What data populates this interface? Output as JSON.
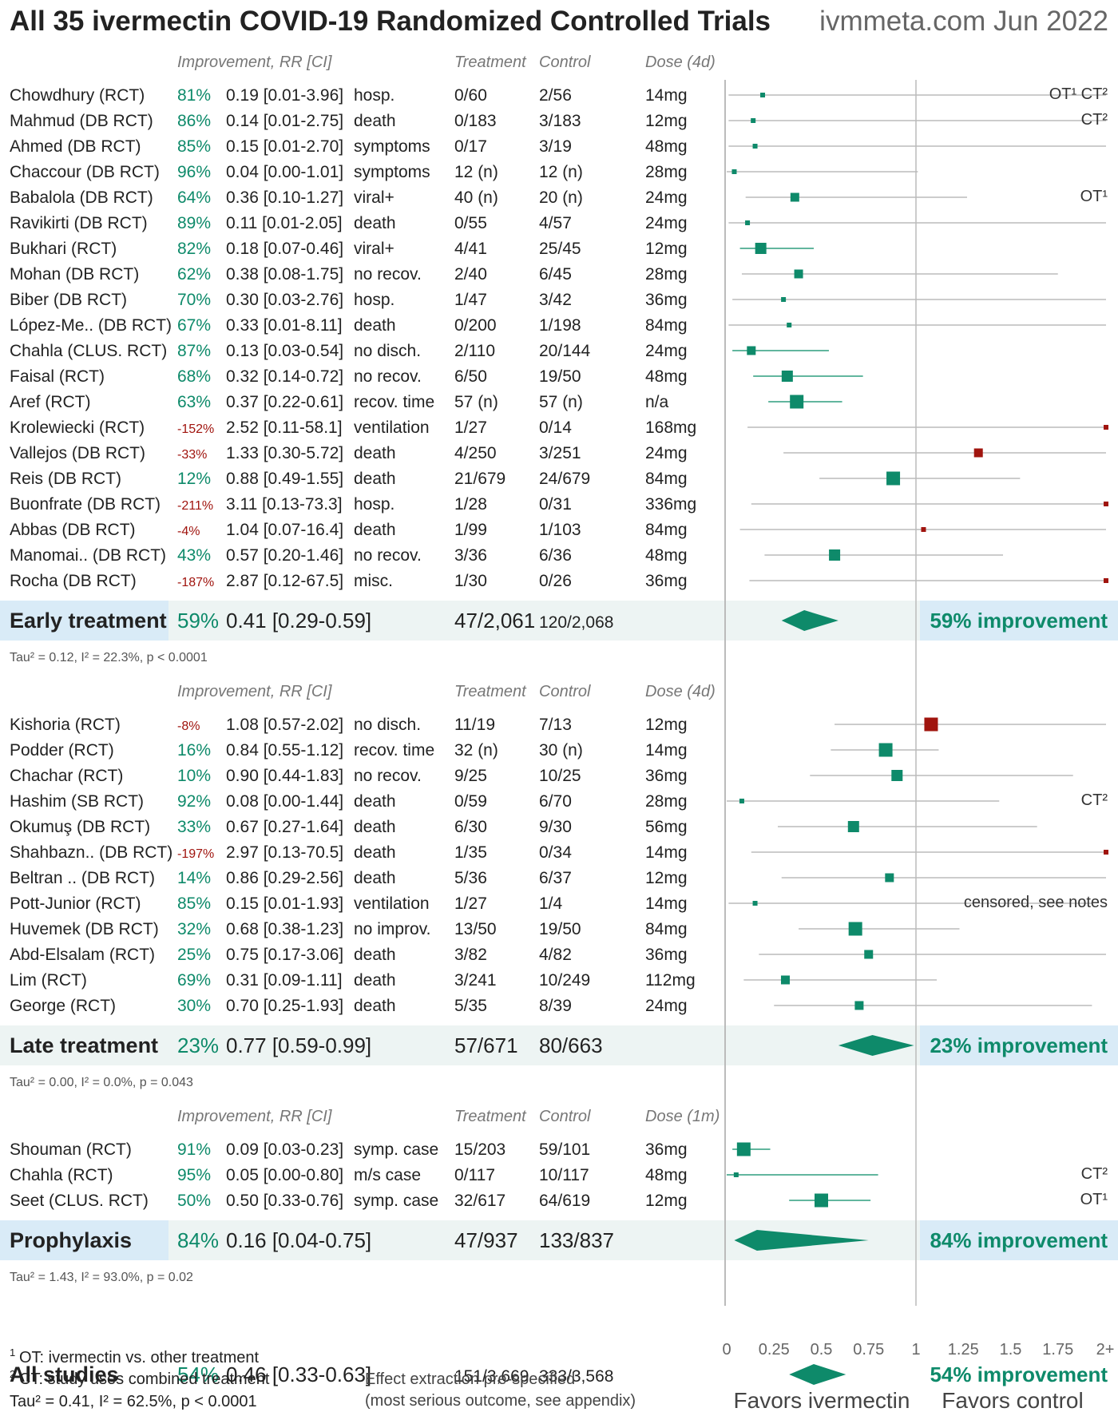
{
  "header": {
    "title": "All 35 ivermectin COVID-19 Randomized Controlled Trials",
    "source": "ivmmeta.com Jun 2022"
  },
  "colors": {
    "benefit": "#0e8a6a",
    "harm": "#a0140e",
    "ci_benefit": "#2e9e7e",
    "ci_neutral": "#bbbbbb",
    "band": "#edf4f3",
    "label_band": "#d9ebf7",
    "text": "#222222",
    "muted": "#777777"
  },
  "axis": {
    "ticks": [
      "0",
      "0.25",
      "0.5",
      "0.75",
      "1",
      "1.25",
      "1.5",
      "1.75",
      "2+"
    ],
    "favors_left": "Favors ivermectin",
    "favors_right": "Favors control"
  },
  "footnotes": {
    "ot": "OT: ivermectin vs. other treatment",
    "ct": "CT: study uses combined treatment",
    "overall_tau": "Tau² = 0.41, I² = 62.5%, p < 0.0001",
    "effect_line1": "Effect extraction pre-specified",
    "effect_line2": "(most serious outcome, see appendix)"
  },
  "chart_data": {
    "type": "forest",
    "xlim": [
      0,
      2
    ],
    "reference_line": 1,
    "groups": [
      {
        "name": "Early treatment",
        "headers": {
          "improvement": "Improvement, RR [CI]",
          "treatment": "Treatment",
          "control": "Control",
          "dose": "Dose (4d)"
        },
        "studies": [
          {
            "name": "Chowdhury (RCT)",
            "improvement": "81%",
            "rr": 0.19,
            "ci_text": "0.19 [0.01-3.96]",
            "lo": 0.01,
            "hi": 3.96,
            "outcome": "hosp.",
            "treatment": "0/60",
            "control": "2/56",
            "dose": "14mg",
            "note": "OT¹ CT²",
            "w": 1
          },
          {
            "name": "Mahmud (DB RCT)",
            "improvement": "86%",
            "rr": 0.14,
            "ci_text": "0.14 [0.01-2.75]",
            "lo": 0.01,
            "hi": 2.75,
            "outcome": "death",
            "treatment": "0/183",
            "control": "3/183",
            "dose": "12mg",
            "note": "CT²",
            "w": 1
          },
          {
            "name": "Ahmed (DB RCT)",
            "improvement": "85%",
            "rr": 0.15,
            "ci_text": "0.15 [0.01-2.70]",
            "lo": 0.01,
            "hi": 2.7,
            "outcome": "symptoms",
            "treatment": "0/17",
            "control": "3/19",
            "dose": "48mg",
            "note": "",
            "w": 1
          },
          {
            "name": "Chaccour (DB RCT)",
            "improvement": "96%",
            "rr": 0.04,
            "ci_text": "0.04 [0.00-1.01]",
            "lo": 0.0,
            "hi": 1.01,
            "outcome": "symptoms",
            "treatment": "12 (n)",
            "control": "12 (n)",
            "dose": "28mg",
            "note": "",
            "w": 1
          },
          {
            "name": "Babalola (DB RCT)",
            "improvement": "64%",
            "rr": 0.36,
            "ci_text": "0.36 [0.10-1.27]",
            "lo": 0.1,
            "hi": 1.27,
            "outcome": "viral+",
            "treatment": "40 (n)",
            "control": "20 (n)",
            "dose": "24mg",
            "note": "OT¹",
            "w": 2
          },
          {
            "name": "Ravikirti (DB RCT)",
            "improvement": "89%",
            "rr": 0.11,
            "ci_text": "0.11 [0.01-2.05]",
            "lo": 0.01,
            "hi": 2.05,
            "outcome": "death",
            "treatment": "0/55",
            "control": "4/57",
            "dose": "24mg",
            "note": "",
            "w": 1
          },
          {
            "name": "Bukhari (RCT)",
            "improvement": "82%",
            "rr": 0.18,
            "ci_text": "0.18 [0.07-0.46]",
            "lo": 0.07,
            "hi": 0.46,
            "outcome": "viral+",
            "treatment": "4/41",
            "control": "25/45",
            "dose": "12mg",
            "note": "",
            "w": 3
          },
          {
            "name": "Mohan (DB RCT)",
            "improvement": "62%",
            "rr": 0.38,
            "ci_text": "0.38 [0.08-1.75]",
            "lo": 0.08,
            "hi": 1.75,
            "outcome": "no recov.",
            "treatment": "2/40",
            "control": "6/45",
            "dose": "28mg",
            "note": "",
            "w": 2
          },
          {
            "name": "Biber (DB RCT)",
            "improvement": "70%",
            "rr": 0.3,
            "ci_text": "0.30 [0.03-2.76]",
            "lo": 0.03,
            "hi": 2.76,
            "outcome": "hosp.",
            "treatment": "1/47",
            "control": "3/42",
            "dose": "36mg",
            "note": "",
            "w": 1
          },
          {
            "name": "López-Me.. (DB RCT)",
            "improvement": "67%",
            "rr": 0.33,
            "ci_text": "0.33 [0.01-8.11]",
            "lo": 0.01,
            "hi": 8.11,
            "outcome": "death",
            "treatment": "0/200",
            "control": "1/198",
            "dose": "84mg",
            "note": "",
            "w": 1
          },
          {
            "name": "Chahla (CLUS. RCT)",
            "improvement": "87%",
            "rr": 0.13,
            "ci_text": "0.13 [0.03-0.54]",
            "lo": 0.03,
            "hi": 0.54,
            "outcome": "no disch.",
            "treatment": "2/110",
            "control": "20/144",
            "dose": "24mg",
            "note": "",
            "w": 2
          },
          {
            "name": "Faisal (RCT)",
            "improvement": "68%",
            "rr": 0.32,
            "ci_text": "0.32 [0.14-0.72]",
            "lo": 0.14,
            "hi": 0.72,
            "outcome": "no recov.",
            "treatment": "6/50",
            "control": "19/50",
            "dose": "48mg",
            "note": "",
            "w": 3
          },
          {
            "name": "Aref (RCT)",
            "improvement": "63%",
            "rr": 0.37,
            "ci_text": "0.37 [0.22-0.61]",
            "lo": 0.22,
            "hi": 0.61,
            "outcome": "recov. time",
            "treatment": "57 (n)",
            "control": "57 (n)",
            "dose": "n/a",
            "note": "",
            "w": 4
          },
          {
            "name": "Krolewiecki (RCT)",
            "improvement": "-152%",
            "rr": 2.52,
            "ci_text": "2.52 [0.11-58.1]",
            "lo": 0.11,
            "hi": 58.1,
            "outcome": "ventilation",
            "treatment": "1/27",
            "control": "0/14",
            "dose": "168mg",
            "note": "",
            "w": 1
          },
          {
            "name": "Vallejos (DB RCT)",
            "improvement": "-33%",
            "rr": 1.33,
            "ci_text": "1.33 [0.30-5.72]",
            "lo": 0.3,
            "hi": 5.72,
            "outcome": "death",
            "treatment": "4/250",
            "control": "3/251",
            "dose": "24mg",
            "note": "",
            "w": 2
          },
          {
            "name": "Reis (DB RCT)",
            "improvement": "12%",
            "rr": 0.88,
            "ci_text": "0.88 [0.49-1.55]",
            "lo": 0.49,
            "hi": 1.55,
            "outcome": "death",
            "treatment": "21/679",
            "control": "24/679",
            "dose": "84mg",
            "note": "",
            "w": 4
          },
          {
            "name": "Buonfrate (DB RCT)",
            "improvement": "-211%",
            "rr": 3.11,
            "ci_text": "3.11 [0.13-73.3]",
            "lo": 0.13,
            "hi": 73.3,
            "outcome": "hosp.",
            "treatment": "1/28",
            "control": "0/31",
            "dose": "336mg",
            "note": "",
            "w": 1
          },
          {
            "name": "Abbas (DB RCT)",
            "improvement": "-4%",
            "rr": 1.04,
            "ci_text": "1.04 [0.07-16.4]",
            "lo": 0.07,
            "hi": 16.4,
            "outcome": "death",
            "treatment": "1/99",
            "control": "1/103",
            "dose": "84mg",
            "note": "",
            "w": 1
          },
          {
            "name": "Manomai.. (DB RCT)",
            "improvement": "43%",
            "rr": 0.57,
            "ci_text": "0.57 [0.20-1.46]",
            "lo": 0.2,
            "hi": 1.46,
            "outcome": "no recov.",
            "treatment": "3/36",
            "control": "6/36",
            "dose": "48mg",
            "note": "",
            "w": 3
          },
          {
            "name": "Rocha (DB RCT)",
            "improvement": "-187%",
            "rr": 2.87,
            "ci_text": "2.87 [0.12-67.5]",
            "lo": 0.12,
            "hi": 67.5,
            "outcome": "misc.",
            "treatment": "1/30",
            "control": "0/26",
            "dose": "36mg",
            "note": "",
            "w": 1
          }
        ],
        "summary": {
          "label": "Early treatment",
          "improvement": "59%",
          "ci_text": "0.41 [0.29-0.59]",
          "rr": 0.41,
          "lo": 0.29,
          "hi": 0.59,
          "treatment": "47/2,061",
          "control": "120/2,068",
          "result": "59% improvement",
          "highlight": true,
          "tau": "Tau² = 0.12, I² = 22.3%, p < 0.0001"
        }
      },
      {
        "name": "Late treatment",
        "headers": {
          "improvement": "Improvement, RR [CI]",
          "treatment": "Treatment",
          "control": "Control",
          "dose": "Dose (4d)"
        },
        "studies": [
          {
            "name": "Kishoria (RCT)",
            "improvement": "-8%",
            "rr": 1.08,
            "ci_text": "1.08 [0.57-2.02]",
            "lo": 0.57,
            "hi": 2.02,
            "outcome": "no disch.",
            "treatment": "11/19",
            "control": "7/13",
            "dose": "12mg",
            "note": "",
            "w": 4
          },
          {
            "name": "Podder (RCT)",
            "improvement": "16%",
            "rr": 0.84,
            "ci_text": "0.84 [0.55-1.12]",
            "lo": 0.55,
            "hi": 1.12,
            "outcome": "recov. time",
            "treatment": "32 (n)",
            "control": "30 (n)",
            "dose": "14mg",
            "note": "",
            "w": 4
          },
          {
            "name": "Chachar (RCT)",
            "improvement": "10%",
            "rr": 0.9,
            "ci_text": "0.90 [0.44-1.83]",
            "lo": 0.44,
            "hi": 1.83,
            "outcome": "no recov.",
            "treatment": "9/25",
            "control": "10/25",
            "dose": "36mg",
            "note": "",
            "w": 3
          },
          {
            "name": "Hashim (SB RCT)",
            "improvement": "92%",
            "rr": 0.08,
            "ci_text": "0.08 [0.00-1.44]",
            "lo": 0.0,
            "hi": 1.44,
            "outcome": "death",
            "treatment": "0/59",
            "control": "6/70",
            "dose": "28mg",
            "note": "CT²",
            "w": 1
          },
          {
            "name": "Okumuş (DB RCT)",
            "improvement": "33%",
            "rr": 0.67,
            "ci_text": "0.67 [0.27-1.64]",
            "lo": 0.27,
            "hi": 1.64,
            "outcome": "death",
            "treatment": "6/30",
            "control": "9/30",
            "dose": "56mg",
            "note": "",
            "w": 3
          },
          {
            "name": "Shahbazn.. (DB RCT)",
            "improvement": "-197%",
            "rr": 2.97,
            "ci_text": "2.97 [0.13-70.5]",
            "lo": 0.13,
            "hi": 70.5,
            "outcome": "death",
            "treatment": "1/35",
            "control": "0/34",
            "dose": "14mg",
            "note": "",
            "w": 1
          },
          {
            "name": "Beltran .. (DB RCT)",
            "improvement": "14%",
            "rr": 0.86,
            "ci_text": "0.86 [0.29-2.56]",
            "lo": 0.29,
            "hi": 2.56,
            "outcome": "death",
            "treatment": "5/36",
            "control": "6/37",
            "dose": "12mg",
            "note": "",
            "w": 2
          },
          {
            "name": "Pott-Junior (RCT)",
            "improvement": "85%",
            "rr": 0.15,
            "ci_text": "0.15 [0.01-1.93]",
            "lo": 0.01,
            "hi": 1.93,
            "outcome": "ventilation",
            "treatment": "1/27",
            "control": "1/4",
            "dose": "14mg",
            "note": "censored, see notes",
            "w": 1
          },
          {
            "name": "Huvemek (DB RCT)",
            "improvement": "32%",
            "rr": 0.68,
            "ci_text": "0.68 [0.38-1.23]",
            "lo": 0.38,
            "hi": 1.23,
            "outcome": "no improv.",
            "treatment": "13/50",
            "control": "19/50",
            "dose": "84mg",
            "note": "",
            "w": 4
          },
          {
            "name": "Abd-Elsalam (RCT)",
            "improvement": "25%",
            "rr": 0.75,
            "ci_text": "0.75 [0.17-3.06]",
            "lo": 0.17,
            "hi": 3.06,
            "outcome": "death",
            "treatment": "3/82",
            "control": "4/82",
            "dose": "36mg",
            "note": "",
            "w": 2
          },
          {
            "name": "Lim (RCT)",
            "improvement": "69%",
            "rr": 0.31,
            "ci_text": "0.31 [0.09-1.11]",
            "lo": 0.09,
            "hi": 1.11,
            "outcome": "death",
            "treatment": "3/241",
            "control": "10/249",
            "dose": "112mg",
            "note": "",
            "w": 2
          },
          {
            "name": "George (RCT)",
            "improvement": "30%",
            "rr": 0.7,
            "ci_text": "0.70 [0.25-1.93]",
            "lo": 0.25,
            "hi": 1.93,
            "outcome": "death",
            "treatment": "5/35",
            "control": "8/39",
            "dose": "24mg",
            "note": "",
            "w": 2
          }
        ],
        "summary": {
          "label": "Late treatment",
          "improvement": "23%",
          "ci_text": "0.77 [0.59-0.99]",
          "rr": 0.77,
          "lo": 0.59,
          "hi": 0.99,
          "treatment": "57/671",
          "control": "80/663",
          "result": "23% improvement",
          "highlight": false,
          "tau": "Tau² = 0.00, I² = 0.0%, p = 0.043"
        }
      },
      {
        "name": "Prophylaxis",
        "headers": {
          "improvement": "Improvement, RR [CI]",
          "treatment": "Treatment",
          "control": "Control",
          "dose": "Dose (1m)"
        },
        "studies": [
          {
            "name": "Shouman (RCT)",
            "improvement": "91%",
            "rr": 0.09,
            "ci_text": "0.09 [0.03-0.23]",
            "lo": 0.03,
            "hi": 0.23,
            "outcome": "symp. case",
            "treatment": "15/203",
            "control": "59/101",
            "dose": "36mg",
            "note": "",
            "w": 4
          },
          {
            "name": "Chahla (RCT)",
            "improvement": "95%",
            "rr": 0.05,
            "ci_text": "0.05 [0.00-0.80]",
            "lo": 0.0,
            "hi": 0.8,
            "outcome": "m/s case",
            "treatment": "0/117",
            "control": "10/117",
            "dose": "48mg",
            "note": "CT²",
            "w": 1
          },
          {
            "name": "Seet (CLUS. RCT)",
            "improvement": "50%",
            "rr": 0.5,
            "ci_text": "0.50 [0.33-0.76]",
            "lo": 0.33,
            "hi": 0.76,
            "outcome": "symp. case",
            "treatment": "32/617",
            "control": "64/619",
            "dose": "12mg",
            "note": "OT¹",
            "w": 4
          }
        ],
        "summary": {
          "label": "Prophylaxis",
          "improvement": "84%",
          "ci_text": "0.16 [0.04-0.75]",
          "rr": 0.16,
          "lo": 0.04,
          "hi": 0.75,
          "treatment": "47/937",
          "control": "133/837",
          "result": "84% improvement",
          "highlight": true,
          "tau": "Tau² = 1.43, I² = 93.0%, p = 0.02"
        }
      }
    ],
    "overall": {
      "label": "All studies",
      "improvement": "54%",
      "ci_text": "0.46 [0.33-0.63]",
      "rr": 0.46,
      "lo": 0.33,
      "hi": 0.63,
      "treatment": "151/3,669",
      "control": "333/3,568",
      "result": "54% improvement"
    }
  }
}
